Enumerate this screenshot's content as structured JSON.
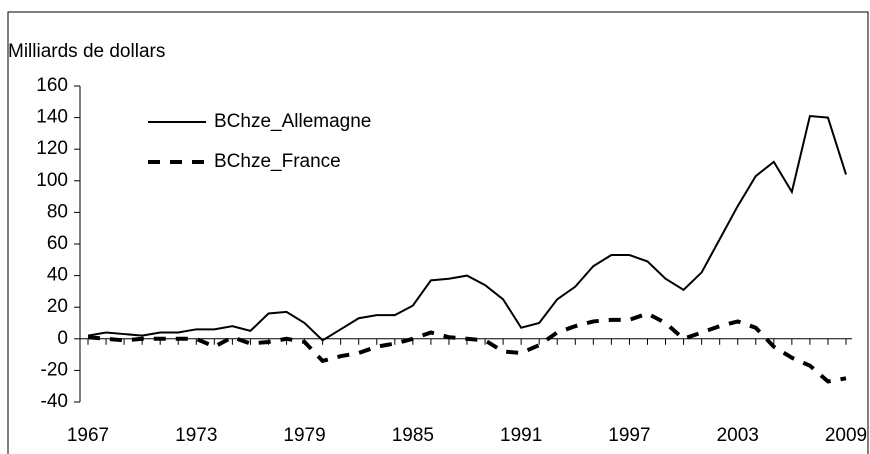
{
  "chart_data": {
    "type": "line",
    "y_label": "Milliards de dollars",
    "x": [
      1967,
      1968,
      1969,
      1970,
      1971,
      1972,
      1973,
      1974,
      1975,
      1976,
      1977,
      1978,
      1979,
      1980,
      1981,
      1982,
      1983,
      1984,
      1985,
      1986,
      1987,
      1988,
      1989,
      1990,
      1991,
      1992,
      1993,
      1994,
      1995,
      1996,
      1997,
      1998,
      1999,
      2000,
      2001,
      2002,
      2003,
      2004,
      2005,
      2006,
      2007,
      2008,
      2009
    ],
    "series": [
      {
        "name": "BChze_Allemagne",
        "color": "#000000",
        "line_style": "solid",
        "values": [
          2,
          4,
          3,
          2,
          4,
          4,
          6,
          6,
          8,
          5,
          16,
          17,
          10,
          -1,
          6,
          13,
          15,
          15,
          21,
          37,
          38,
          40,
          34,
          25,
          7,
          10,
          25,
          33,
          46,
          53,
          53,
          49,
          38,
          31,
          42,
          63,
          84,
          103,
          112,
          93,
          141,
          140,
          104
        ]
      },
      {
        "name": "BChze_France",
        "color": "#000000",
        "line_style": "dashed",
        "values": [
          1,
          0,
          -1,
          0,
          0,
          0,
          0,
          -5,
          1,
          -3,
          -2,
          0,
          -2,
          -14,
          -11,
          -9,
          -5,
          -3,
          0,
          4,
          1,
          0,
          -1,
          -8,
          -9,
          -4,
          4,
          8,
          11,
          12,
          12,
          16,
          10,
          0,
          4,
          8,
          11,
          7,
          -5,
          -12,
          -17,
          -27,
          -25
        ]
      }
    ],
    "xlim": [
      1967,
      2009
    ],
    "xticks": [
      1967,
      1973,
      1979,
      1985,
      1991,
      1997,
      2003,
      2009
    ],
    "ylim": [
      -40,
      160
    ],
    "yticks": [
      -40,
      -20,
      0,
      20,
      40,
      60,
      80,
      100,
      120,
      140,
      160
    ],
    "legend": "upper left"
  }
}
